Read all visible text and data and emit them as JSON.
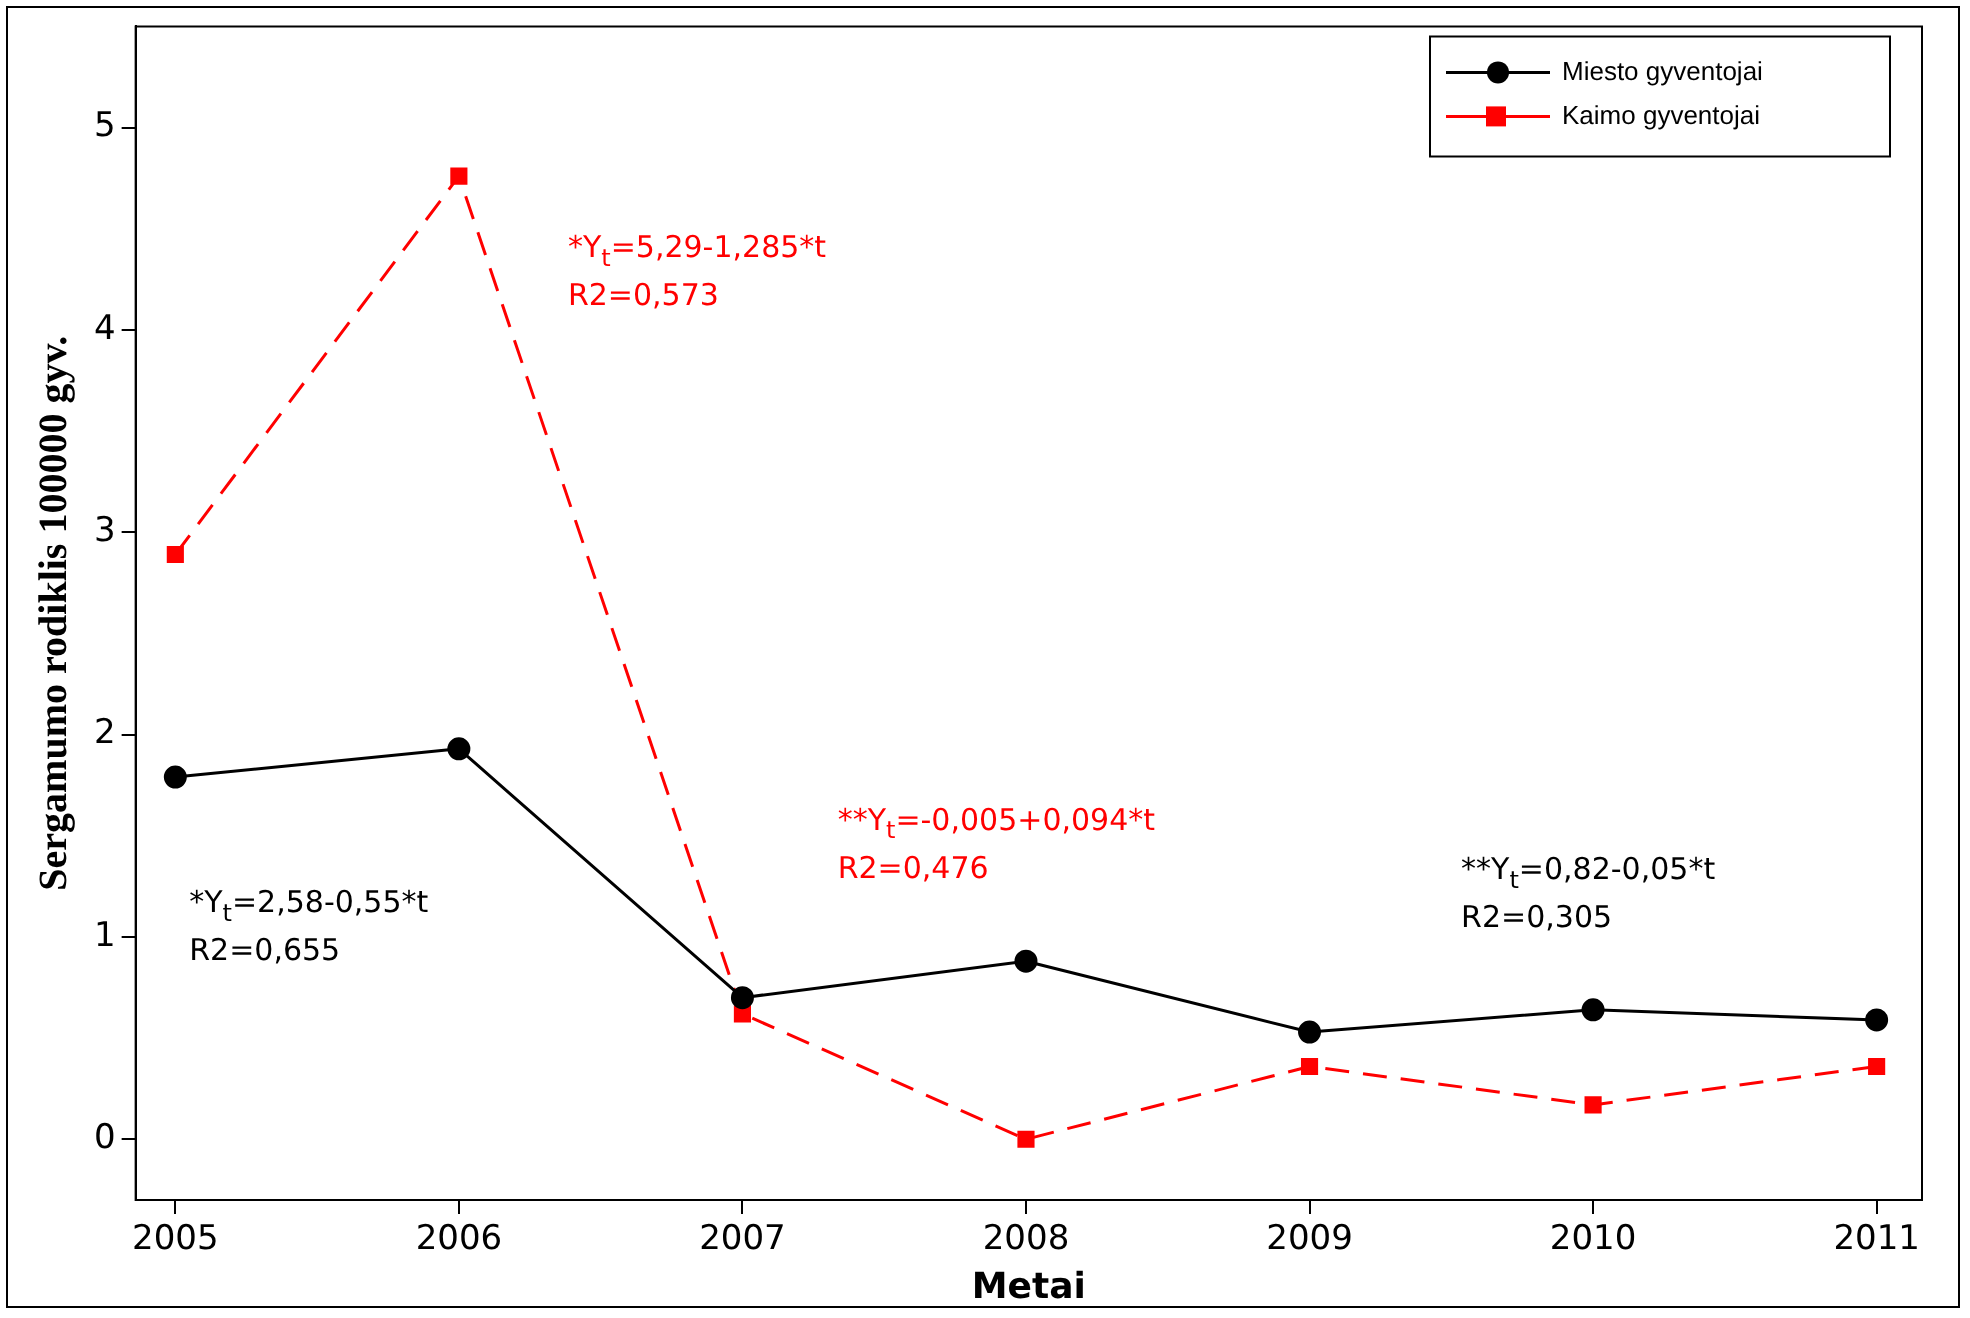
{
  "chart_data": {
    "type": "line",
    "xlabel": "Metai",
    "ylabel": "Sergamumo rodiklis 100000 gyv.",
    "x": [
      2005,
      2006,
      2007,
      2008,
      2009,
      2010,
      2011
    ],
    "series": [
      {
        "name": "Miesto gyventojai",
        "color": "#000000",
        "marker": "circle",
        "line_style": "solid",
        "values": [
          1.79,
          1.93,
          0.7,
          0.88,
          0.53,
          0.64,
          0.59
        ]
      },
      {
        "name": "Kaimo gyventojai",
        "color": "#ff0000",
        "marker": "square",
        "line_style": "dashed",
        "values": [
          2.89,
          4.76,
          0.62,
          0,
          0.36,
          0.17,
          0.36
        ]
      }
    ],
    "xlim": [
      2004.86,
      2011.16
    ],
    "xticks": [
      2005,
      2006,
      2007,
      2008,
      2009,
      2010,
      2011
    ],
    "ylim": [
      -0.3,
      5.5
    ],
    "yticks": [
      0,
      1,
      2,
      3,
      4,
      5
    ],
    "grid": false,
    "legend": "top right",
    "annotations": [
      "*Y$_{t}$=5,29-1,285*t\nR2=0,573",
      "*Y$_{t}$=2,58-0,55*t\nR2=0,655",
      "**Y$_{t}$=-0,005+0,094*t\nR2=0,476",
      "**Y$_{t}$=0,82-0,05*t\nR2=0,305"
    ]
  }
}
